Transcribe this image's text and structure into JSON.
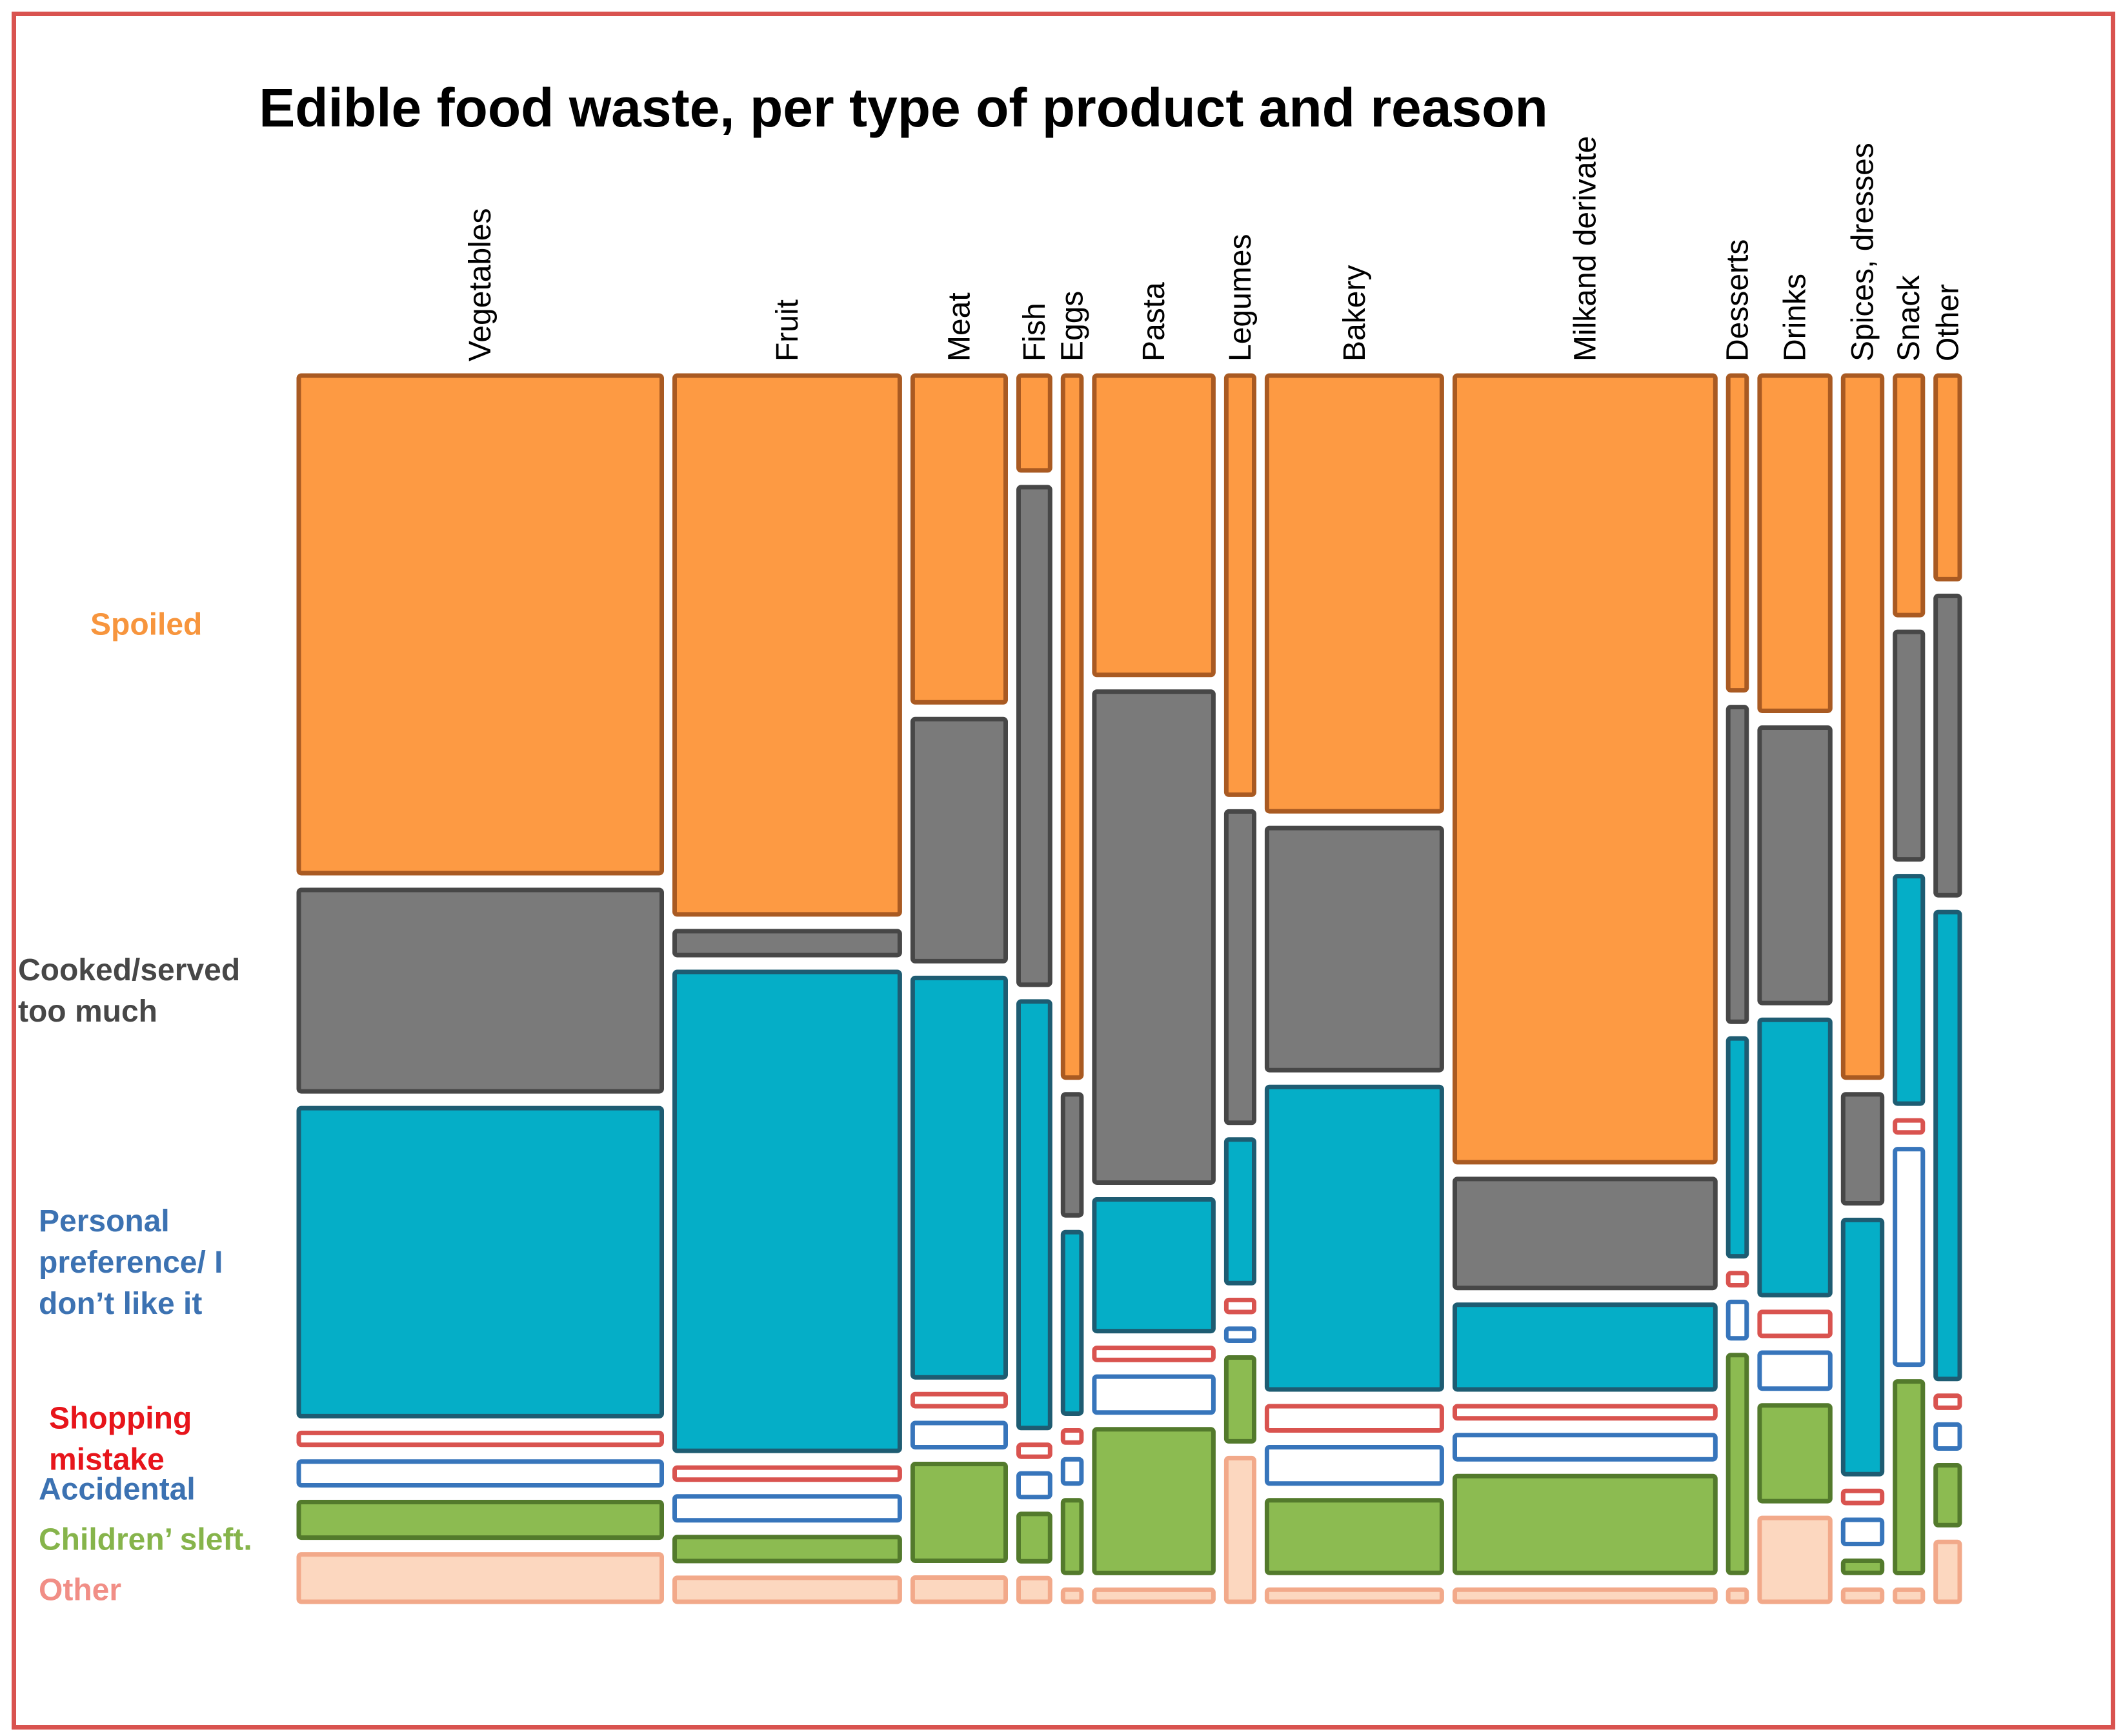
{
  "chart_data": {
    "type": "mosaic",
    "title": "Edible food waste, per type of product and reason",
    "categories": [
      "Vegetables",
      "Fruit",
      "Meat",
      "Fish",
      "Eggs",
      "Pasta",
      "Legumes",
      "Bakery",
      "Milkand derivate",
      "Desserts",
      "Drinks",
      "Spices, dresses",
      "Snack",
      "Other"
    ],
    "category_share": [
      0.197,
      0.123,
      0.052,
      0.019,
      0.012,
      0.066,
      0.017,
      0.096,
      0.142,
      0.012,
      0.04,
      0.023,
      0.017,
      0.015
    ],
    "reasons": [
      "Spoiled",
      "Cooked/served too much",
      "Personal preference/ I don't like it",
      "Shopping mistake",
      "Accidental",
      "Children' sleft.",
      "Other"
    ],
    "reason_labels": [
      "Spoiled",
      "Cooked/served too much",
      "Personal preference/ I don’t like it",
      "Shopping mistake",
      "Accidental",
      "Children’ sleft.",
      "Other"
    ],
    "series": [
      {
        "name": "Spoiled",
        "values": [
          0.42,
          0.45,
          0.27,
          0.08,
          0.58,
          0.25,
          0.35,
          0.36,
          0.65,
          0.26,
          0.28,
          0.58,
          0.2,
          0.17
        ]
      },
      {
        "name": "Cooked/served too much",
        "values": [
          0.17,
          0.02,
          0.2,
          0.42,
          0.1,
          0.41,
          0.26,
          0.2,
          0.09,
          0.26,
          0.23,
          0.09,
          0.19,
          0.25
        ]
      },
      {
        "name": "Personal preference/ I don't like it",
        "values": [
          0.26,
          0.4,
          0.33,
          0.36,
          0.15,
          0.11,
          0.12,
          0.25,
          0.07,
          0.18,
          0.23,
          0.21,
          0.19,
          0.39
        ]
      },
      {
        "name": "Shopping mistake",
        "values": [
          0.01,
          0.01,
          0.01,
          0.01,
          0.01,
          0.01,
          0.01,
          0.02,
          0.01,
          0.01,
          0.02,
          0.01,
          0.01,
          0.01
        ]
      },
      {
        "name": "Accidental",
        "values": [
          0.02,
          0.02,
          0.02,
          0.02,
          0.02,
          0.03,
          0.01,
          0.03,
          0.02,
          0.03,
          0.03,
          0.02,
          0.18,
          0.02
        ]
      },
      {
        "name": "Children' sleft.",
        "values": [
          0.03,
          0.02,
          0.08,
          0.04,
          0.06,
          0.12,
          0.07,
          0.06,
          0.08,
          0.18,
          0.08,
          0.01,
          0.16,
          0.05
        ]
      },
      {
        "name": "Other",
        "values": [
          0.04,
          0.02,
          0.02,
          0.02,
          0.01,
          0.01,
          0.12,
          0.01,
          0.01,
          0.01,
          0.07,
          0.01,
          0.01,
          0.05
        ]
      }
    ],
    "colors": {
      "fills": [
        "#fd9a43",
        "#7a7a7a",
        "#05aec7",
        "#ffffff",
        "#ffffff",
        "#8cbb51",
        "#fcd7bf"
      ],
      "strokes": [
        "#a95a22",
        "#474747",
        "#1e5c72",
        "#d9534f",
        "#3775bb",
        "#537a2c",
        "#f2a98a"
      ],
      "labels": [
        "#f7953d",
        "#474747",
        "#3c72b2",
        "#e7151b",
        "#3c72b2",
        "#86b44b",
        "#f18e86"
      ]
    },
    "legend": "left"
  }
}
